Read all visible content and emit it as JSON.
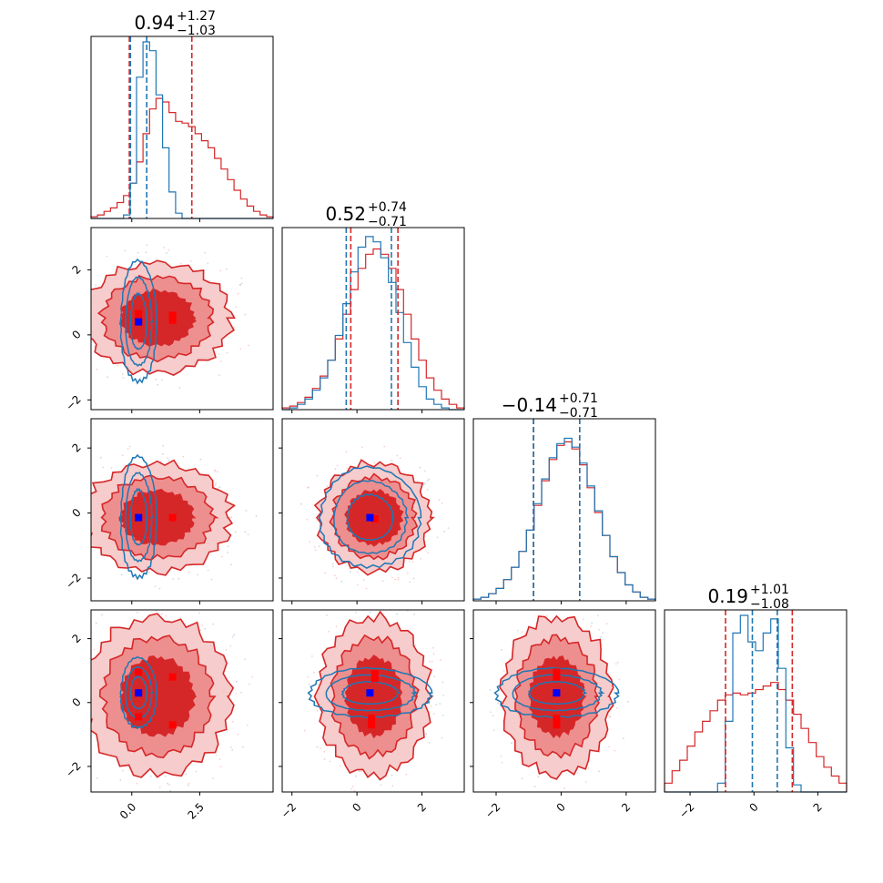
{
  "chart_data": {
    "type": "corner",
    "grid": false,
    "legend": "none",
    "colors": {
      "series_a": "#d62728",
      "series_b": "#1f77b4",
      "marker_a": "#ff0000",
      "marker_b": "#0000ff"
    },
    "parameters": [
      {
        "range": [
          -1.5,
          5.2
        ],
        "ticks": [
          0.0,
          2.5
        ],
        "tick_labels": [
          "0.0",
          "2.5"
        ],
        "title": {
          "median": "0.94",
          "plus": "+1.27",
          "minus": "−1.03"
        },
        "quantiles_a": [
          -0.09,
          2.21
        ],
        "quantiles_b": [
          -0.05,
          0.55
        ]
      },
      {
        "range": [
          -2.3,
          3.3
        ],
        "ticks": [
          -2,
          0,
          2
        ],
        "tick_labels": [
          "−2",
          "0",
          "2"
        ],
        "title": {
          "median": "0.52",
          "plus": "+0.74",
          "minus": "−0.71"
        },
        "quantiles_a": [
          -0.19,
          1.26
        ],
        "quantiles_b": [
          -0.33,
          1.06
        ]
      },
      {
        "range": [
          -2.7,
          2.9
        ],
        "ticks": [
          -2,
          0,
          2
        ],
        "tick_labels": [
          "−2",
          "0",
          "2"
        ],
        "title": {
          "median": "−0.14",
          "plus": "+0.71",
          "minus": "−0.71"
        },
        "quantiles_a": [
          -0.85,
          0.57
        ],
        "quantiles_b": [
          -0.85,
          0.57
        ]
      },
      {
        "range": [
          -2.8,
          2.9
        ],
        "ticks": [
          -2,
          0,
          2
        ],
        "tick_labels": [
          "−2",
          "0",
          "2"
        ],
        "title": {
          "median": "0.19",
          "plus": "+1.01",
          "minus": "−1.08"
        },
        "quantiles_a": [
          -0.89,
          1.2
        ],
        "quantiles_b": [
          -0.05,
          0.73
        ]
      }
    ],
    "histograms": [
      {
        "a": [
          0.01,
          0.02,
          0.04,
          0.06,
          0.09,
          0.13,
          0.2,
          0.32,
          0.48,
          0.62,
          0.68,
          0.66,
          0.6,
          0.55,
          0.54,
          0.52,
          0.48,
          0.44,
          0.4,
          0.34,
          0.28,
          0.22,
          0.16,
          0.11,
          0.07,
          0.04,
          0.02,
          0.01
        ],
        "b": [
          0.0,
          0.0,
          0.0,
          0.0,
          0.0,
          0.02,
          0.2,
          0.8,
          1.0,
          0.95,
          0.7,
          0.4,
          0.15,
          0.03,
          0.0,
          0.0,
          0.0,
          0.0,
          0.0,
          0.0,
          0.0,
          0.0,
          0.0,
          0.0,
          0.0,
          0.0,
          0.0,
          0.0
        ]
      },
      {
        "a": [
          0.01,
          0.02,
          0.04,
          0.07,
          0.12,
          0.19,
          0.28,
          0.4,
          0.54,
          0.68,
          0.8,
          0.88,
          0.91,
          0.88,
          0.8,
          0.68,
          0.54,
          0.4,
          0.28,
          0.18,
          0.11,
          0.06,
          0.03,
          0.01
        ],
        "b": [
          0.0,
          0.01,
          0.03,
          0.06,
          0.11,
          0.18,
          0.28,
          0.42,
          0.6,
          0.78,
          0.92,
          0.98,
          0.95,
          0.86,
          0.72,
          0.55,
          0.38,
          0.24,
          0.13,
          0.06,
          0.03,
          0.01,
          0.0,
          0.0
        ]
      },
      {
        "a": [
          0.01,
          0.02,
          0.04,
          0.07,
          0.12,
          0.19,
          0.28,
          0.4,
          0.54,
          0.68,
          0.8,
          0.88,
          0.9,
          0.86,
          0.77,
          0.64,
          0.5,
          0.37,
          0.25,
          0.16,
          0.09,
          0.05,
          0.02,
          0.01
        ],
        "b": [
          0.01,
          0.02,
          0.04,
          0.07,
          0.12,
          0.19,
          0.28,
          0.4,
          0.55,
          0.69,
          0.81,
          0.89,
          0.92,
          0.87,
          0.78,
          0.65,
          0.51,
          0.37,
          0.25,
          0.16,
          0.09,
          0.05,
          0.02,
          0.01
        ]
      },
      {
        "a": [
          0.05,
          0.12,
          0.18,
          0.26,
          0.34,
          0.4,
          0.46,
          0.52,
          0.55,
          0.56,
          0.55,
          0.56,
          0.58,
          0.6,
          0.62,
          0.58,
          0.52,
          0.44,
          0.36,
          0.28,
          0.2,
          0.14,
          0.09,
          0.05
        ],
        "b": [
          0.0,
          0.0,
          0.0,
          0.0,
          0.0,
          0.0,
          0.0,
          0.05,
          0.4,
          0.9,
          1.0,
          0.85,
          0.8,
          0.9,
          0.98,
          0.7,
          0.25,
          0.04,
          0.0,
          0.0,
          0.0,
          0.0,
          0.0,
          0.0
        ]
      }
    ],
    "panels_2d": [
      {
        "x": 0,
        "y": 1,
        "a_center": [
          0.94,
          0.52
        ],
        "a_sigma": [
          1.15,
          0.72
        ],
        "b_center": [
          0.25,
          0.4
        ],
        "b_sigma": [
          0.3,
          0.85
        ],
        "markers_a": [
          [
            0.25,
            0.65
          ],
          [
            1.5,
            0.6
          ],
          [
            0.25,
            0.45
          ],
          [
            1.5,
            0.45
          ]
        ],
        "markers_b": [
          [
            0.25,
            0.4
          ]
        ]
      },
      {
        "x": 0,
        "y": 2,
        "a_center": [
          0.94,
          -0.14
        ],
        "a_sigma": [
          1.15,
          0.71
        ],
        "b_center": [
          0.25,
          -0.14
        ],
        "b_sigma": [
          0.3,
          0.85
        ],
        "markers_a": [
          [
            1.5,
            -0.14
          ]
        ],
        "markers_b": [
          [
            0.25,
            -0.14
          ]
        ]
      },
      {
        "x": 1,
        "y": 2,
        "a_center": [
          0.52,
          -0.14
        ],
        "a_sigma": [
          0.73,
          0.71
        ],
        "b_center": [
          0.4,
          -0.14
        ],
        "b_sigma": [
          0.7,
          0.7
        ],
        "markers_a": [
          [
            0.55,
            -0.18
          ]
        ],
        "markers_b": [
          [
            0.4,
            -0.14
          ]
        ]
      },
      {
        "x": 0,
        "y": 3,
        "a_center": [
          0.94,
          0.19
        ],
        "a_sigma": [
          1.15,
          1.05
        ],
        "b_center": [
          0.25,
          0.3
        ],
        "b_sigma": [
          0.3,
          0.5
        ],
        "markers_a": [
          [
            0.25,
            0.95
          ],
          [
            1.5,
            0.8
          ],
          [
            0.25,
            -0.45
          ],
          [
            1.5,
            -0.7
          ]
        ],
        "markers_b": [
          [
            0.25,
            0.3
          ]
        ]
      },
      {
        "x": 1,
        "y": 3,
        "a_center": [
          0.52,
          0.19
        ],
        "a_sigma": [
          0.73,
          1.05
        ],
        "b_center": [
          0.4,
          0.3
        ],
        "b_sigma": [
          0.85,
          0.35
        ],
        "markers_a": [
          [
            0.55,
            0.9
          ],
          [
            0.55,
            0.75
          ],
          [
            0.45,
            -0.5
          ],
          [
            0.45,
            -0.7
          ]
        ],
        "markers_b": [
          [
            0.4,
            0.3
          ]
        ]
      },
      {
        "x": 2,
        "y": 3,
        "a_center": [
          -0.14,
          0.19
        ],
        "a_sigma": [
          0.71,
          1.05
        ],
        "b_center": [
          -0.14,
          0.3
        ],
        "b_sigma": [
          0.85,
          0.35
        ],
        "markers_a": [
          [
            -0.14,
            0.95
          ],
          [
            -0.14,
            0.8
          ],
          [
            -0.14,
            -0.5
          ],
          [
            -0.14,
            -0.7
          ]
        ],
        "markers_b": [
          [
            -0.14,
            0.3
          ]
        ]
      }
    ]
  }
}
